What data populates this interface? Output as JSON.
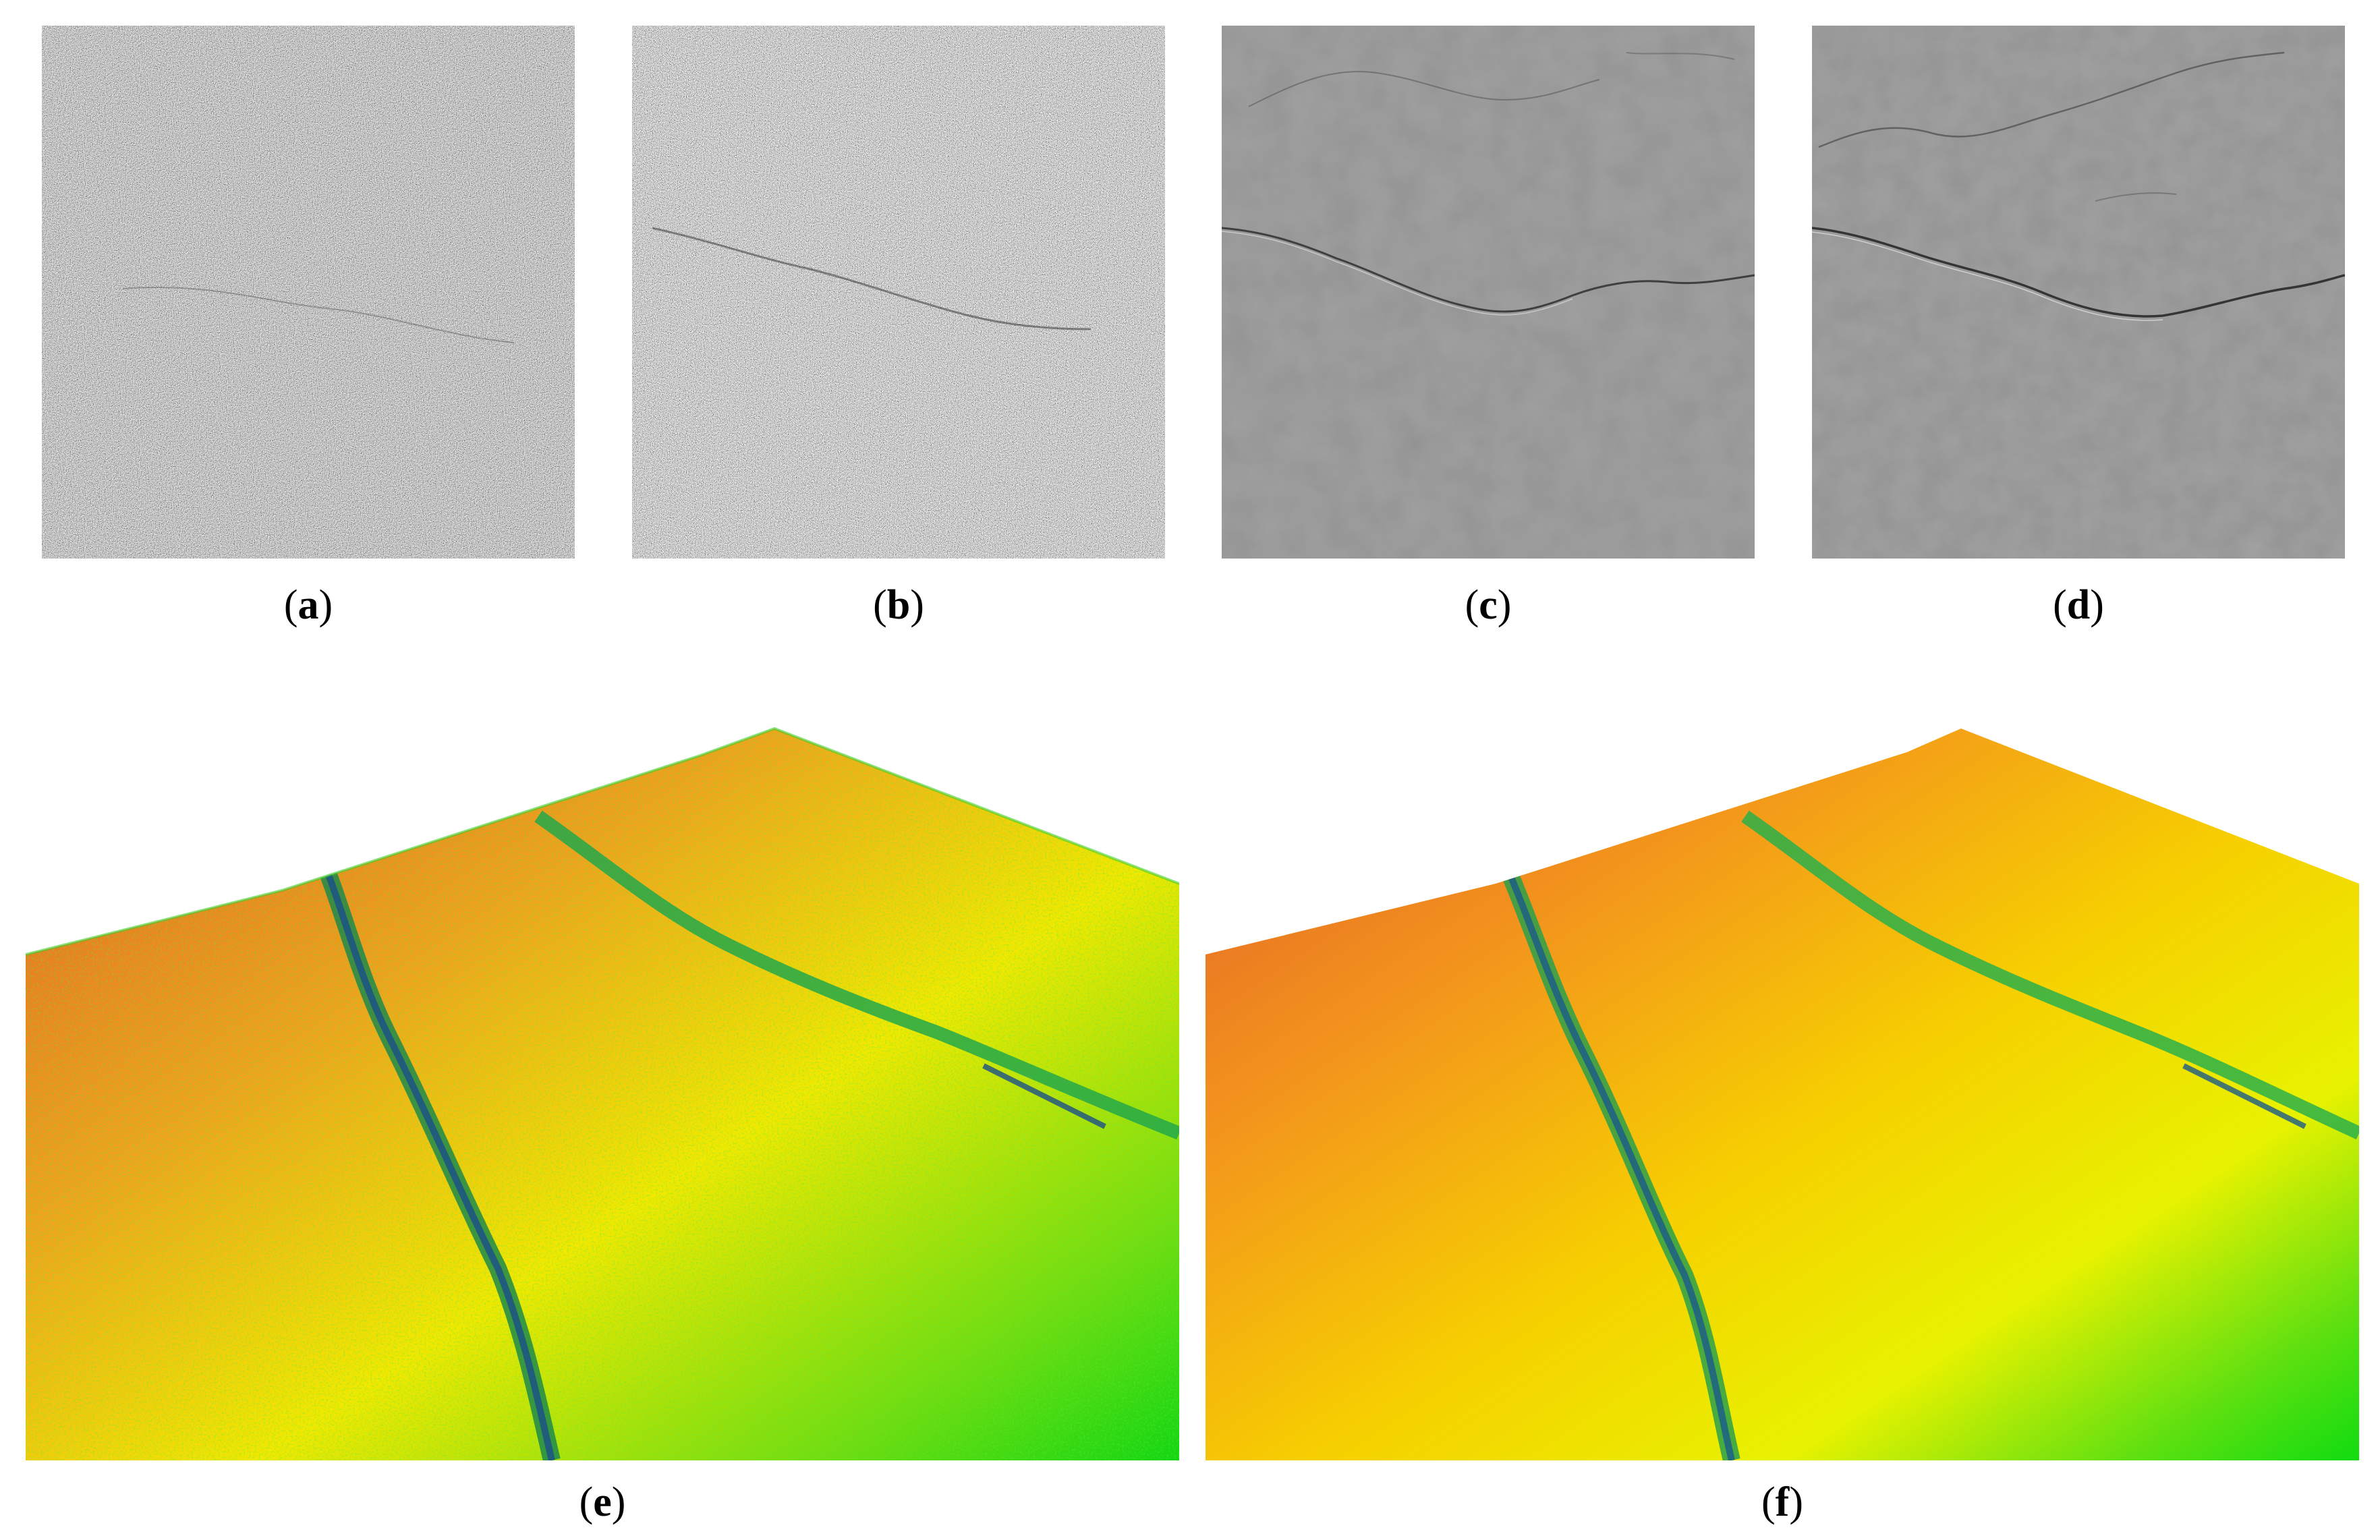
{
  "panels": [
    {
      "id": "a",
      "label": "a",
      "kind": "noisy-grayscale-image"
    },
    {
      "id": "b",
      "label": "b",
      "kind": "noisy-grayscale-image"
    },
    {
      "id": "c",
      "label": "c",
      "kind": "filtered-grayscale-image"
    },
    {
      "id": "d",
      "label": "d",
      "kind": "filtered-grayscale-image"
    },
    {
      "id": "e",
      "label": "e",
      "kind": "3d-terrain-noisy"
    },
    {
      "id": "f",
      "label": "f",
      "kind": "3d-terrain-smooth"
    }
  ],
  "colors": {
    "gray": "#808080",
    "terrain_orange": "#e8762a",
    "terrain_yellow": "#f4e400",
    "terrain_green": "#12d612",
    "terrain_blue": "#1a5f8a"
  },
  "captions": {
    "a": "a",
    "b": "b",
    "c": "c",
    "d": "d",
    "e": "e",
    "f": "f"
  }
}
